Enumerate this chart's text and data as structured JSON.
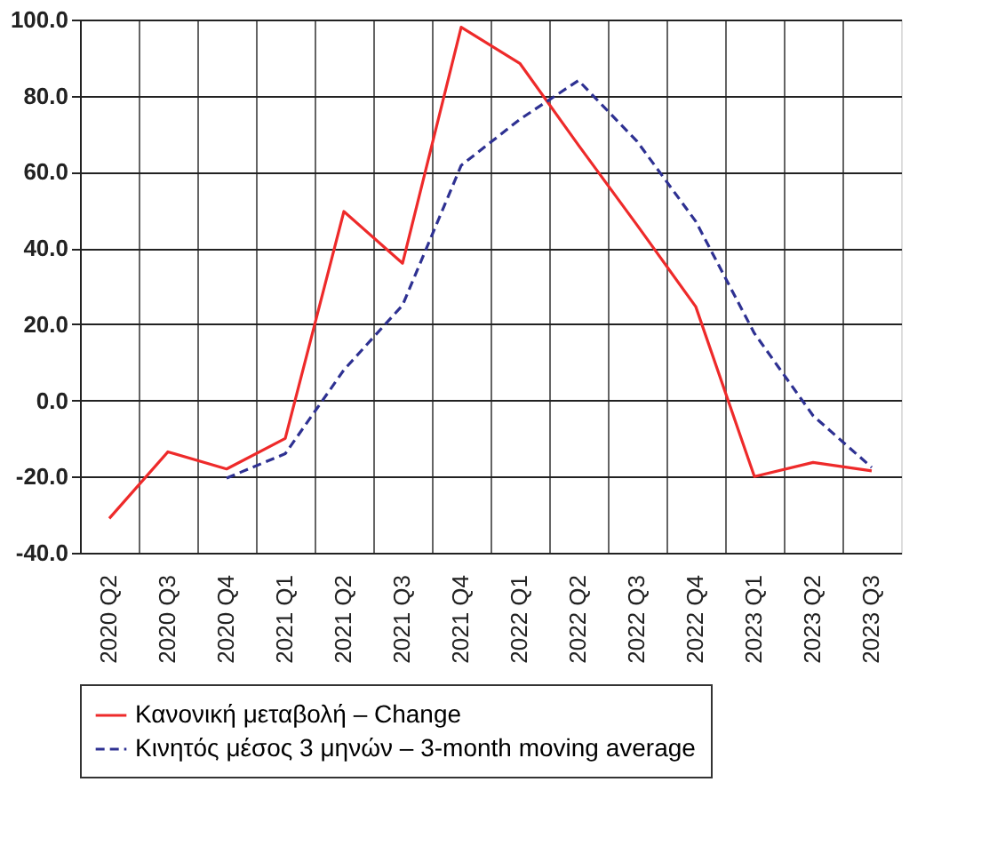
{
  "chart_data": {
    "type": "line",
    "categories": [
      "2020 Q2",
      "2020 Q3",
      "2020 Q4",
      "2021 Q1",
      "2021 Q2",
      "2021 Q3",
      "2021 Q4",
      "2022 Q1",
      "2022 Q2",
      "2022 Q3",
      "2022 Q4",
      "2023 Q1",
      "2023 Q2",
      "2023 Q3"
    ],
    "series": [
      {
        "name": "Κανονική μεταβολή – Change",
        "color": "#ee2a2a",
        "line_style": "solid",
        "values": [
          -31,
          -13.5,
          -18,
          -10,
          49.6,
          36,
          98,
          88.5,
          67,
          46,
          24.6,
          -20,
          -16.3,
          -18.5
        ]
      },
      {
        "name": "Κινητός μέσος 3 μηνών – 3-month moving average",
        "color": "#2e3192",
        "line_style": "dashed",
        "values": [
          null,
          null,
          -20.4,
          -14,
          8,
          25,
          61.7,
          73.8,
          84,
          68,
          47,
          17.6,
          -4,
          -17.6
        ]
      }
    ],
    "ylim": [
      -40,
      100
    ],
    "yticks": [
      {
        "value": -40,
        "label": "-40.0"
      },
      {
        "value": -20,
        "label": "-20.0"
      },
      {
        "value": 0,
        "label": "0.0"
      },
      {
        "value": 20,
        "label": "20.0"
      },
      {
        "value": 40,
        "label": "40.0"
      },
      {
        "value": 60,
        "label": "60.0"
      },
      {
        "value": 80,
        "label": "80.0"
      },
      {
        "value": 100,
        "label": "100.0"
      }
    ],
    "grid": true,
    "legend": "bottom",
    "marker": "none"
  }
}
